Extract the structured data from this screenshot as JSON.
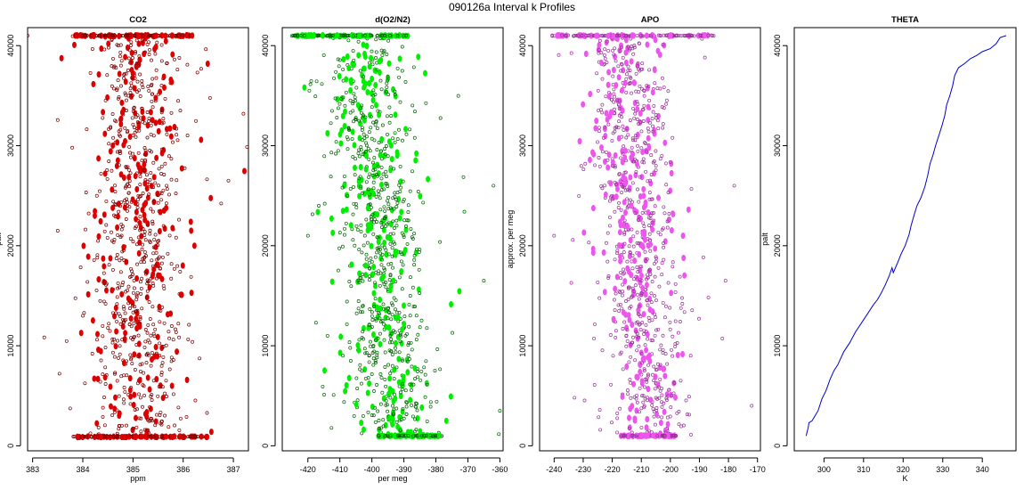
{
  "figure": {
    "main_title": "090126a   Interval k Profiles"
  },
  "chart_data": [
    {
      "type": "scatter",
      "title": "CO2",
      "xlabel": "ppm",
      "ylabel": "palt",
      "xlim": [
        382.9,
        387.3
      ],
      "ylim": [
        -500,
        41800
      ],
      "xticks": [
        383,
        384,
        385,
        386,
        387
      ],
      "xtick_labels": [
        "383",
        "384",
        "385",
        "386",
        "387"
      ],
      "yticks": [
        0,
        10000,
        20000,
        30000,
        40000
      ],
      "ytick_labels": [
        "0",
        "10000",
        "20000",
        "30000",
        "40000"
      ],
      "color": "#dd0000",
      "edge_color": "#7a0000",
      "center": 385.1,
      "spread": 0.45,
      "seed": 11,
      "n_points": 900,
      "dense_rows": {
        "top": 41000,
        "bottom": 900,
        "top_range": [
          383.8,
          386.2
        ],
        "bottom_range": [
          383.8,
          386.5
        ]
      },
      "outliers": [
        [
          382.9,
          41000
        ],
        [
          387.2,
          33200
        ],
        [
          383.5,
          21500
        ],
        [
          386.9,
          26500
        ],
        [
          384.0,
          13000
        ]
      ]
    },
    {
      "type": "scatter",
      "title": "d(O2/N2)",
      "xlabel": "per meg",
      "ylabel": "",
      "xlim": [
        -428,
        -359
      ],
      "ylim": [
        -500,
        41800
      ],
      "xticks": [
        -420,
        -410,
        -400,
        -390,
        -380,
        -370,
        -360
      ],
      "xtick_labels": [
        "-420",
        "-410",
        "-400",
        "-390",
        "-380",
        "-370",
        "-360"
      ],
      "yticks": [
        0,
        10000,
        20000,
        30000,
        40000
      ],
      "ytick_labels": [
        "0",
        "10000",
        "20000",
        "30000",
        "40000"
      ],
      "color": "#00ee00",
      "edge_color": "#006600",
      "center_top": -403,
      "center_bottom": -392,
      "spread": 6.5,
      "seed": 23,
      "n_points": 900,
      "dense_rows": {
        "top": 41000,
        "bottom": 1000,
        "top_range": [
          -425,
          -388
        ],
        "bottom_range": [
          -398,
          -378
        ]
      },
      "outliers": [
        [
          -420,
          21000
        ],
        [
          -362,
          26000
        ],
        [
          -360,
          3500
        ],
        [
          -365,
          16500
        ]
      ]
    },
    {
      "type": "scatter",
      "title": "APO",
      "xlabel": "",
      "ylabel": "approx. per meg",
      "xlim": [
        -245,
        -169
      ],
      "ylim": [
        -500,
        41800
      ],
      "xticks": [
        -240,
        -230,
        -220,
        -210,
        -200,
        -190,
        -180,
        -170
      ],
      "xtick_labels": [
        "-240",
        "-230",
        "-220",
        "-210",
        "-200",
        "-190",
        "-180",
        "-170"
      ],
      "yticks": [
        0,
        10000,
        20000,
        30000,
        40000
      ],
      "ytick_labels": [
        "0",
        "10000",
        "20000",
        "30000",
        "40000"
      ],
      "color": "#ee55ee",
      "edge_color": "#993399",
      "center_top": -216,
      "center_bottom": -207,
      "spread": 6.5,
      "seed": 37,
      "n_points": 900,
      "dense_rows": {
        "top": 41000,
        "bottom": 1000,
        "top_range": [
          -241,
          -185
        ],
        "bottom_range": [
          -217,
          -198
        ]
      },
      "outliers": [
        [
          -240,
          21000
        ],
        [
          -178,
          26000
        ],
        [
          -172,
          4000
        ],
        [
          -181,
          16500
        ]
      ]
    },
    {
      "type": "line",
      "title": "THETA",
      "xlabel": "K",
      "ylabel": "palt",
      "xlim": [
        292.5,
        348.5
      ],
      "ylim": [
        -500,
        41800
      ],
      "xticks": [
        300,
        310,
        320,
        330,
        340
      ],
      "xtick_labels": [
        "300",
        "310",
        "320",
        "330",
        "340"
      ],
      "yticks": [
        0,
        10000,
        20000,
        30000,
        40000
      ],
      "ytick_labels": [
        "0",
        "10000",
        "20000",
        "30000",
        "40000"
      ],
      "color": "#0000cc",
      "x": [
        295.5,
        296.0,
        296.2,
        297.0,
        298.5,
        299.5,
        300.5,
        301.5,
        302.5,
        303.5,
        305.0,
        306.5,
        308.0,
        309.5,
        311.0,
        312.5,
        313.5,
        314.5,
        315.5,
        316.5,
        317.2,
        317.5,
        318.5,
        319.5,
        320.5,
        321.5,
        322.0,
        322.8,
        323.5,
        324.5,
        325.5,
        326.2,
        326.8,
        327.5,
        328.2,
        329.0,
        329.8,
        330.5,
        331.0,
        331.8,
        332.5,
        333.0,
        334.0,
        335.5,
        337.0,
        338.5,
        340.0,
        342.0,
        343.5,
        344.5,
        346.0
      ],
      "y": [
        1000,
        1800,
        2300,
        2500,
        3500,
        4700,
        5500,
        6600,
        7500,
        8100,
        9400,
        10300,
        11400,
        12300,
        13200,
        14100,
        14600,
        15300,
        16100,
        17000,
        17800,
        17300,
        18200,
        19200,
        20000,
        21100,
        22000,
        23100,
        24000,
        24800,
        25900,
        27000,
        28200,
        29000,
        30000,
        31000,
        32000,
        33000,
        34100,
        35000,
        36000,
        37000,
        37800,
        38200,
        38700,
        39000,
        39400,
        39700,
        40200,
        40800,
        41000
      ]
    }
  ]
}
